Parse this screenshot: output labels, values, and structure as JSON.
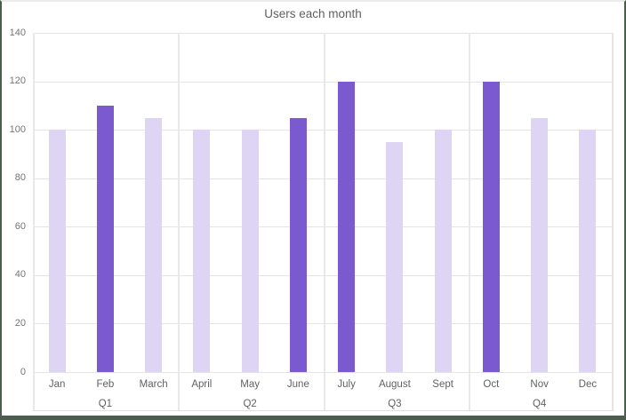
{
  "title": "Users each month",
  "chart_data": {
    "type": "bar",
    "title": "Users each month",
    "categories": [
      "Jan",
      "Feb",
      "March",
      "April",
      "May",
      "June",
      "July",
      "August",
      "Sept",
      "Oct",
      "Nov",
      "Dec"
    ],
    "values": [
      100,
      110,
      105,
      100,
      100,
      105,
      120,
      95,
      100,
      120,
      105,
      100
    ],
    "group_labels": [
      "Q1",
      "Q2",
      "Q3",
      "Q4"
    ],
    "group_size": 3,
    "highlighted": [
      "Feb",
      "June",
      "July",
      "Oct"
    ],
    "yticks": [
      0,
      20,
      40,
      60,
      80,
      100,
      120,
      140
    ],
    "ylim": [
      0,
      140
    ],
    "grid": true,
    "legend": false,
    "bar_color": "#ded5f4",
    "highlight_color": "#7b59ce",
    "gridline_color": "#e4e4e4",
    "frame_color": "#4a5d4e",
    "text_color": "#616161"
  }
}
